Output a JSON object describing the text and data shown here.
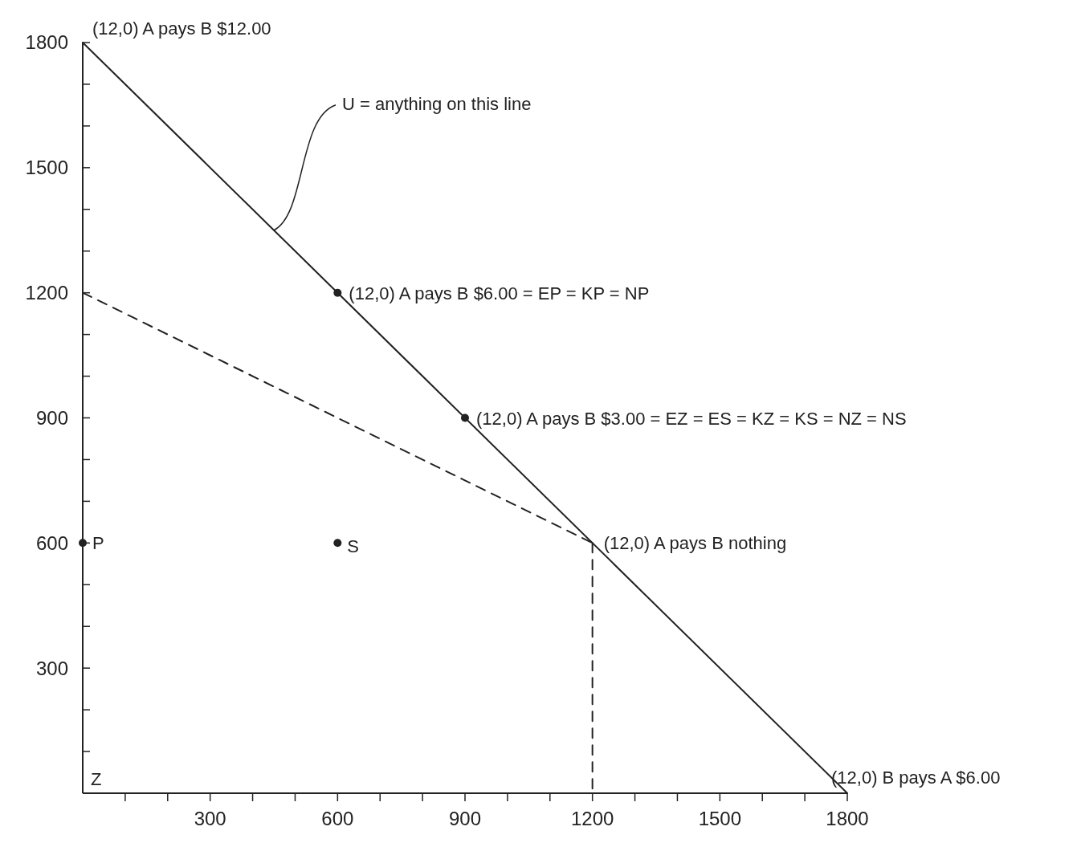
{
  "chart_data": {
    "type": "line",
    "xlim": [
      0,
      1800
    ],
    "ylim": [
      0,
      1800
    ],
    "xticks": [
      {
        "value": 100,
        "label": null
      },
      {
        "value": 200,
        "label": null
      },
      300,
      {
        "value": 400,
        "label": null
      },
      {
        "value": 500,
        "label": null
      },
      600,
      {
        "value": 700,
        "label": null
      },
      {
        "value": 800,
        "label": null
      },
      900,
      {
        "value": 1000,
        "label": null
      },
      {
        "value": 1100,
        "label": null
      },
      1200,
      {
        "value": 1300,
        "label": null
      },
      {
        "value": 1400,
        "label": null
      },
      1500,
      {
        "value": 1600,
        "label": null
      },
      {
        "value": 1700,
        "label": null
      },
      1800
    ],
    "yticks": [
      {
        "value": 100,
        "label": null
      },
      {
        "value": 200,
        "label": null
      },
      300,
      {
        "value": 400,
        "label": null
      },
      {
        "value": 500,
        "label": null
      },
      600,
      {
        "value": 700,
        "label": null
      },
      {
        "value": 800,
        "label": null
      },
      900,
      {
        "value": 1000,
        "label": null
      },
      {
        "value": 1100,
        "label": null
      },
      1200,
      {
        "value": 1300,
        "label": null
      },
      {
        "value": 1400,
        "label": null
      },
      1500,
      {
        "value": 1600,
        "label": null
      },
      {
        "value": 1700,
        "label": null
      },
      1800
    ],
    "series": [
      {
        "x": [
          0,
          1800
        ],
        "values": [
          1800,
          0
        ],
        "color": "#222222",
        "line_style": "solid"
      },
      {
        "x": [
          0,
          1200
        ],
        "values": [
          1200,
          600
        ],
        "color": "#222222",
        "line_style": "dashed"
      },
      {
        "x": [
          1200,
          1200
        ],
        "values": [
          600,
          0
        ],
        "color": "#222222",
        "line_style": "dashed"
      },
      {
        "type": "scatter",
        "x": [
          600,
          900,
          600,
          0
        ],
        "values": [
          1200,
          900,
          600,
          600
        ],
        "color": "#222222",
        "marker": "circle"
      }
    ],
    "annotations": [
      {
        "text": "(12,0) A pays B $12.00",
        "x": 0,
        "y": 1800
      },
      {
        "text": "U = anything on this line",
        "x": 450,
        "y": 1350
      },
      {
        "text": "(12,0) A pays B $6.00 = EP = KP = NP",
        "x": 600,
        "y": 1200
      },
      {
        "text": "(12,0) A pays B $3.00 = EZ = ES = KZ = KS = NZ = NS",
        "x": 900,
        "y": 900
      },
      {
        "text": "(12,0) A pays B nothing",
        "x": 1200,
        "y": 600
      },
      {
        "text": "(12,0) B pays A $6.00",
        "x": 1800,
        "y": 0
      },
      {
        "text": "P",
        "x": 0,
        "y": 600
      },
      {
        "text": "S",
        "x": 600,
        "y": 600
      },
      "Z"
    ]
  }
}
